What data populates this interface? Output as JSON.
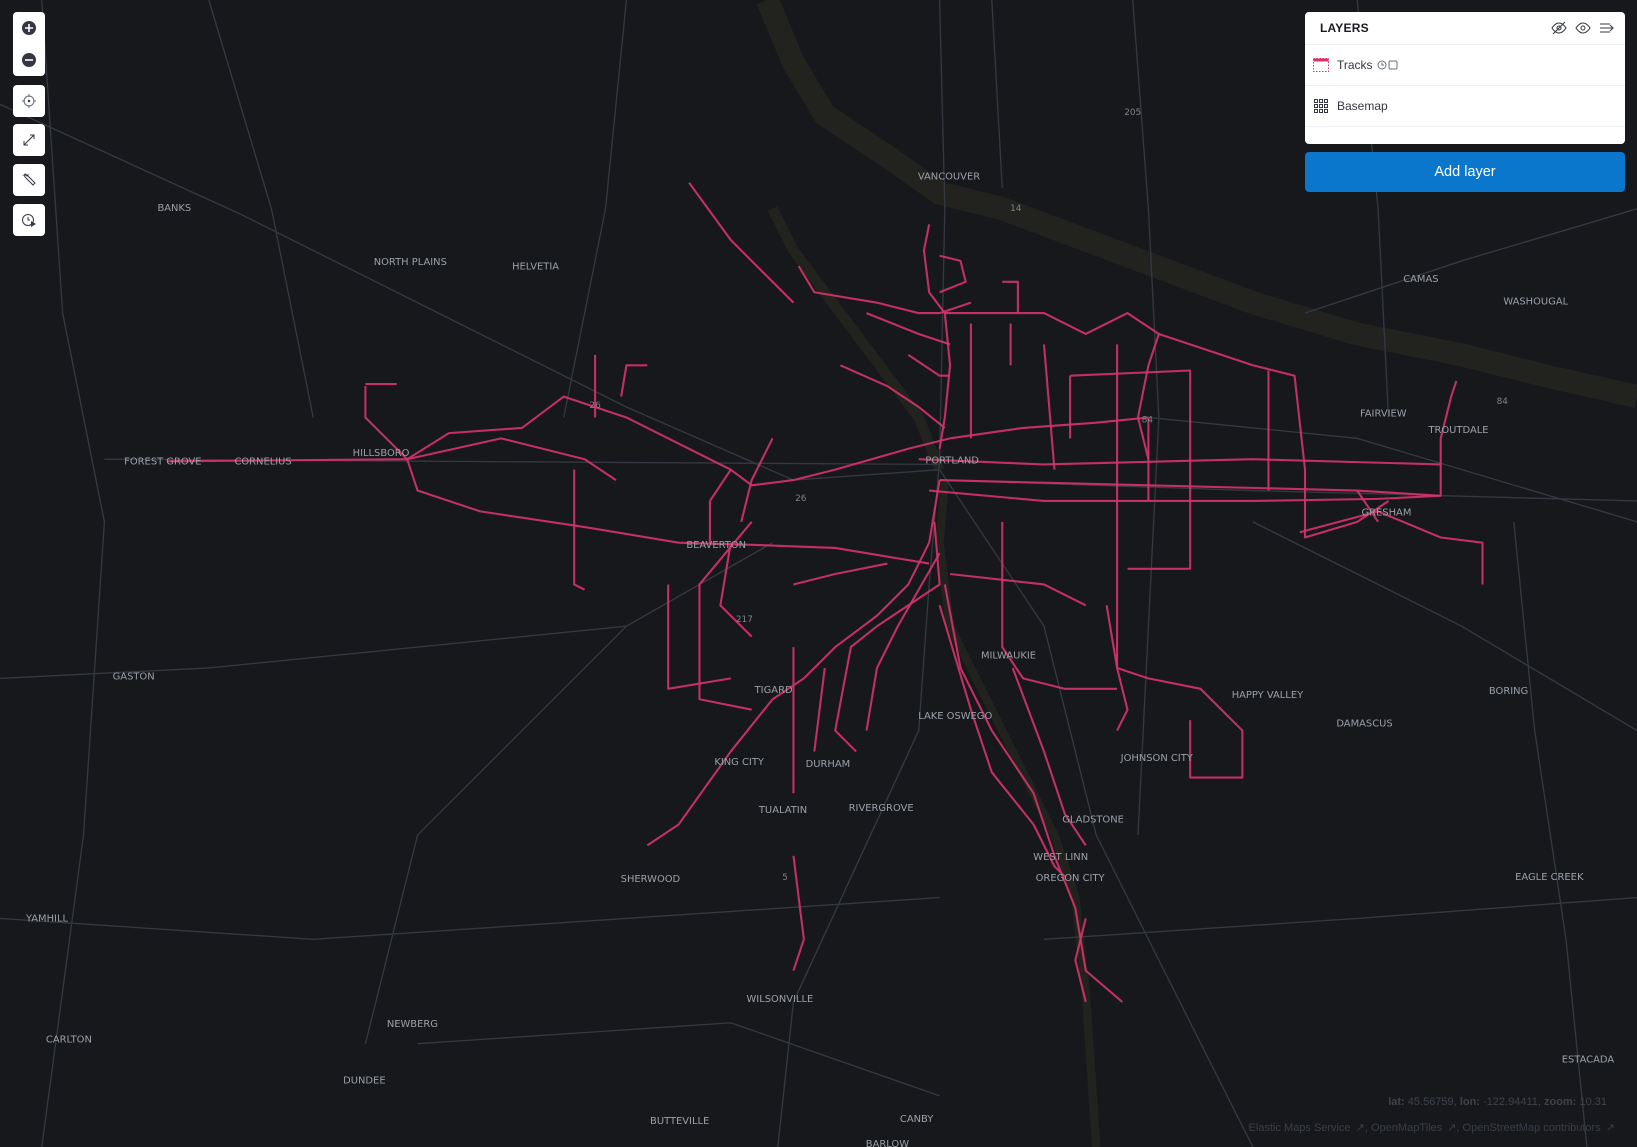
{
  "toolbar": {
    "buttons": [
      "zoom-in",
      "zoom-out",
      "set-view",
      "fit-to-data",
      "tools",
      "timeslider"
    ]
  },
  "layers_panel": {
    "title": "LAYERS",
    "header_icons": [
      "hide-all-icon",
      "show-all-icon",
      "collapse-panel-icon"
    ],
    "layers": [
      {
        "name": "Tracks",
        "icon": "tracks-layer-icon",
        "color": "#d6336c",
        "badges": [
          "clock-icon",
          "checkbox-icon"
        ]
      },
      {
        "name": "Basemap",
        "icon": "grid-icon"
      }
    ],
    "add_layer_label": "Add layer"
  },
  "map": {
    "track_color": "#d6336c",
    "background": "#16181c",
    "places": [
      "BANKS",
      "NORTH PLAINS",
      "HELVETIA",
      "VANCOUVER",
      "CAMAS",
      "WASHOUGAL",
      "FAIRVIEW",
      "TROUTDALE",
      "FOREST GROVE",
      "CORNELIUS",
      "HILLSBORO",
      "PORTLAND",
      "BEAVERTON",
      "GRESHAM",
      "GASTON",
      "MILWAUKIE",
      "TIGARD",
      "HAPPY VALLEY",
      "BORING",
      "DAMASCUS",
      "LAKE OSWEGO",
      "KING CITY",
      "DURHAM",
      "JOHNSON CITY",
      "TUALATIN",
      "RIVERGROVE",
      "GLADSTONE",
      "WEST LINN",
      "OREGON CITY",
      "SHERWOOD",
      "EAGLE CREEK",
      "YAMHILL",
      "WILSONVILLE",
      "NEWBERG",
      "CARLTON",
      "DUNDEE",
      "ESTACADA",
      "BUTTEVILLE",
      "CANBY",
      "BARLOW"
    ],
    "highway_shields": [
      "205",
      "14",
      "84",
      "26",
      "26",
      "217",
      "5",
      "84"
    ]
  },
  "status": {
    "lat_label": "lat:",
    "lat": "45.56759",
    "lon_label": "lon:",
    "lon": "-122.94411",
    "zoom_label": "zoom:",
    "zoom": "10.31"
  },
  "attribution": [
    "Elastic Maps Service",
    "OpenMapTiles",
    "OpenStreetMap contributors"
  ]
}
